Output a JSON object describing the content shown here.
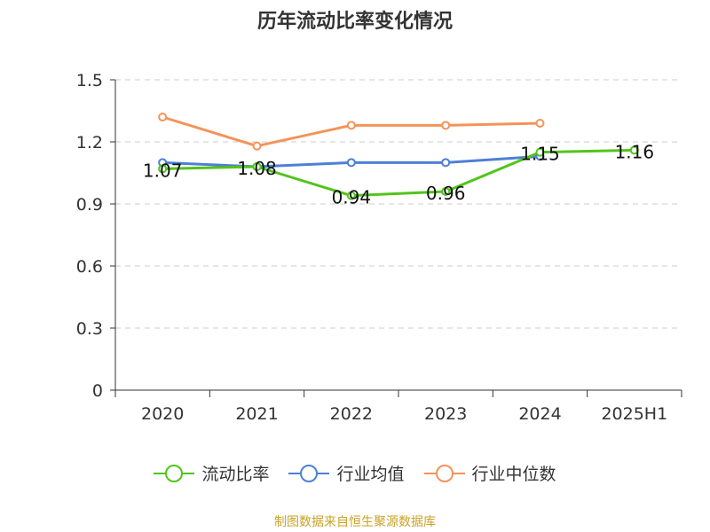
{
  "colors": {
    "current_ratio": "#52c41a",
    "industry_avg": "#4e7fd6",
    "industry_median": "#f4935a",
    "grid": "#cccccc",
    "axis": "#333333",
    "source": "#c9a227"
  },
  "chart_data": {
    "type": "line",
    "title": "历年流动比率变化情况",
    "categories": [
      "2020",
      "2021",
      "2022",
      "2023",
      "2024",
      "2025H1"
    ],
    "ylim": [
      0,
      1.5
    ],
    "yticks": [
      "0",
      "0.3",
      "0.6",
      "0.9",
      "1.2",
      "1.5"
    ],
    "grid": true,
    "legend_position": "bottom",
    "series": [
      {
        "name": "流动比率",
        "values": [
          1.07,
          1.08,
          0.94,
          0.96,
          1.15,
          1.16
        ],
        "labels": [
          "1.07",
          "1.08",
          "0.94",
          "0.96",
          "1.15",
          "1.16"
        ],
        "color": "#52c41a"
      },
      {
        "name": "行业均值",
        "values": [
          1.1,
          1.08,
          1.1,
          1.1,
          1.13,
          null
        ],
        "color": "#4e7fd6"
      },
      {
        "name": "行业中位数",
        "values": [
          1.32,
          1.18,
          1.28,
          1.28,
          1.29,
          null
        ],
        "color": "#f4935a"
      }
    ]
  },
  "source_note": "制图数据来自恒生聚源数据库"
}
